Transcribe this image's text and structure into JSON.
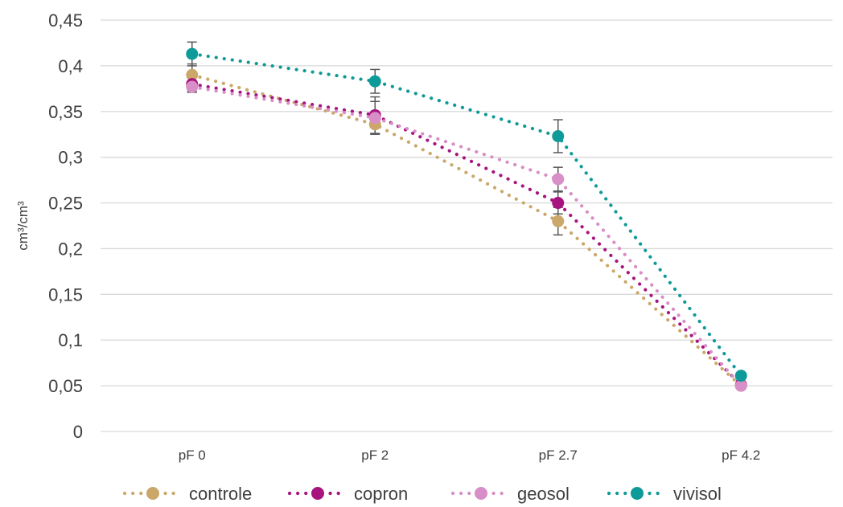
{
  "chart_data": {
    "type": "line",
    "title": "",
    "xlabel": "",
    "ylabel": "cm³/cm³",
    "categories": [
      "pF 0",
      "pF 2",
      "pF 2.7",
      "pF 4.2"
    ],
    "ylim": [
      0,
      0.45
    ],
    "yticks": [
      0,
      0.05,
      0.1,
      0.15,
      0.2,
      0.25,
      0.3,
      0.35,
      0.4,
      0.45
    ],
    "ytick_labels": [
      "0",
      "0,05",
      "0,1",
      "0,15",
      "0,2",
      "0,25",
      "0,3",
      "0,35",
      "0,4",
      "0,45"
    ],
    "grid": "horizontal",
    "legend_position": "bottom",
    "line_style": "dotted",
    "series": [
      {
        "name": "controle",
        "color": "#CBA86A",
        "values": [
          0.39,
          0.336,
          0.23,
          0.05
        ],
        "errors": [
          0.012,
          0.01,
          0.015,
          0.002
        ]
      },
      {
        "name": "copron",
        "color": "#A7147F",
        "values": [
          0.38,
          0.346,
          0.25,
          0.051
        ],
        "errors": [
          0.008,
          0.02,
          0.012,
          0.002
        ]
      },
      {
        "name": "geosol",
        "color": "#D88EC6",
        "values": [
          0.377,
          0.343,
          0.276,
          0.05
        ],
        "errors": [
          0.006,
          0.018,
          0.013,
          0.002
        ]
      },
      {
        "name": "vivisol",
        "color": "#0E9A98",
        "values": [
          0.413,
          0.383,
          0.323,
          0.061
        ],
        "errors": [
          0.013,
          0.013,
          0.018,
          0.003
        ]
      }
    ]
  }
}
